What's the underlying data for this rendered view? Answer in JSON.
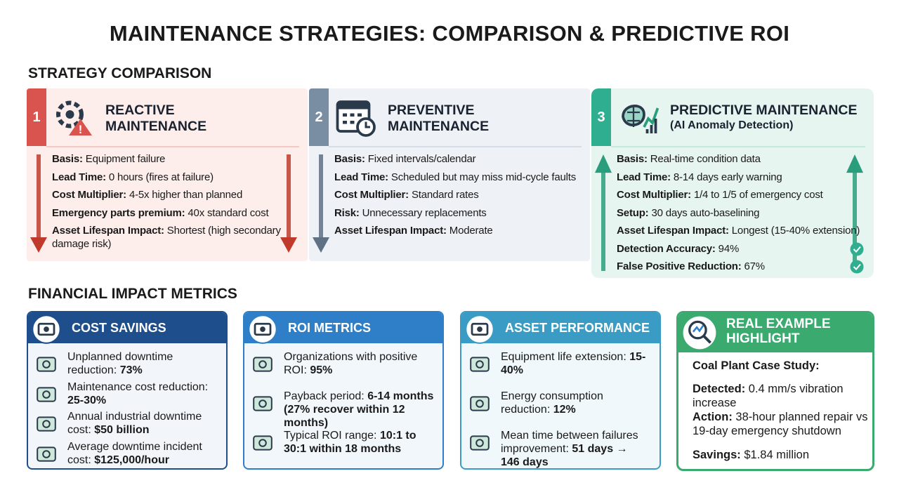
{
  "title": "MAINTENANCE STRATEGIES: COMPARISON & PREDICTIVE ROI",
  "comparison": {
    "heading": "STRATEGY COMPARISON",
    "strategies": [
      {
        "number": "1",
        "title": "REACTIVE MAINTENANCE",
        "items": [
          {
            "label": "Basis:",
            "text": "Equipment failure"
          },
          {
            "label": "Lead Time:",
            "text": "0 hours (fires at failure)"
          },
          {
            "label": "Cost Multiplier:",
            "text": "4-5x higher than planned"
          },
          {
            "label": "Emergency parts premium:",
            "text": "40x standard cost"
          },
          {
            "label": "Asset Lifespan Impact:",
            "text": "Shortest (high secondary damage risk)"
          }
        ]
      },
      {
        "number": "2",
        "title": "PREVENTIVE MAINTENANCE",
        "items": [
          {
            "label": "Basis:",
            "text": "Fixed intervals/calendar"
          },
          {
            "label": "Lead Time:",
            "text": "Scheduled but may miss mid-cycle faults"
          },
          {
            "label": "Cost Multiplier:",
            "text": "Standard rates"
          },
          {
            "label": "Risk:",
            "text": "Unnecessary replacements"
          },
          {
            "label": "Asset Lifespan Impact:",
            "text": "Moderate"
          }
        ]
      },
      {
        "number": "3",
        "title": "PREDICTIVE MAINTENANCE",
        "subtitle": "(AI Anomaly Detection)",
        "items": [
          {
            "label": "Basis:",
            "text": "Real-time condition data"
          },
          {
            "label": "Lead Time:",
            "text": "8-14 days early warning"
          },
          {
            "label": "Cost Multiplier:",
            "text": "1/4 to 1/5 of emergency cost"
          },
          {
            "label": "Setup:",
            "text": "30 days auto-baselining"
          },
          {
            "label": "Asset Lifespan Impact:",
            "text": "Longest (15-40% extension)"
          },
          {
            "label": "Detection Accuracy:",
            "text": "94%"
          },
          {
            "label": "False Positive Reduction:",
            "text": "67%"
          }
        ]
      }
    ]
  },
  "financial": {
    "heading": "FINANCIAL IMPACT METRICS",
    "cards": [
      {
        "title": "COST SAVINGS",
        "items": [
          {
            "text": "Unplanned downtime reduction:",
            "value": "73%"
          },
          {
            "text": "Maintenance cost reduction:",
            "value": "25-30%"
          },
          {
            "text": "Annual industrial downtime cost:",
            "value": "$50 billion"
          },
          {
            "text": "Average downtime incident cost:",
            "value": "$125,000/hour"
          }
        ]
      },
      {
        "title": "ROI METRICS",
        "items": [
          {
            "text": "Organizations with positive ROI:",
            "value": "95%"
          },
          {
            "text": "Payback period:",
            "value": "6-14 months (27% recover within 12 months)"
          },
          {
            "text": "Typical ROI range:",
            "value": "10:1 to 30:1 within 18 months"
          }
        ]
      },
      {
        "title": "ASSET PERFORMANCE",
        "items": [
          {
            "text": "Equipment life extension:",
            "value": "15-40%"
          },
          {
            "text": "Energy consumption reduction:",
            "value": "12%"
          },
          {
            "text": "Mean time between failures improvement:",
            "value": "51 days → 146 days"
          }
        ]
      }
    ]
  },
  "highlight": {
    "title": "REAL EXAMPLE HIGHLIGHT",
    "case": "Coal Plant Case Study:",
    "items": [
      {
        "label": "Detected:",
        "text": "0.4 mm/s vibration increase"
      },
      {
        "label": "Action:",
        "text": "38-hour planned repair vs 19-day emergency shutdown"
      },
      {
        "label": "Savings:",
        "text": "$1.84 million"
      }
    ]
  }
}
